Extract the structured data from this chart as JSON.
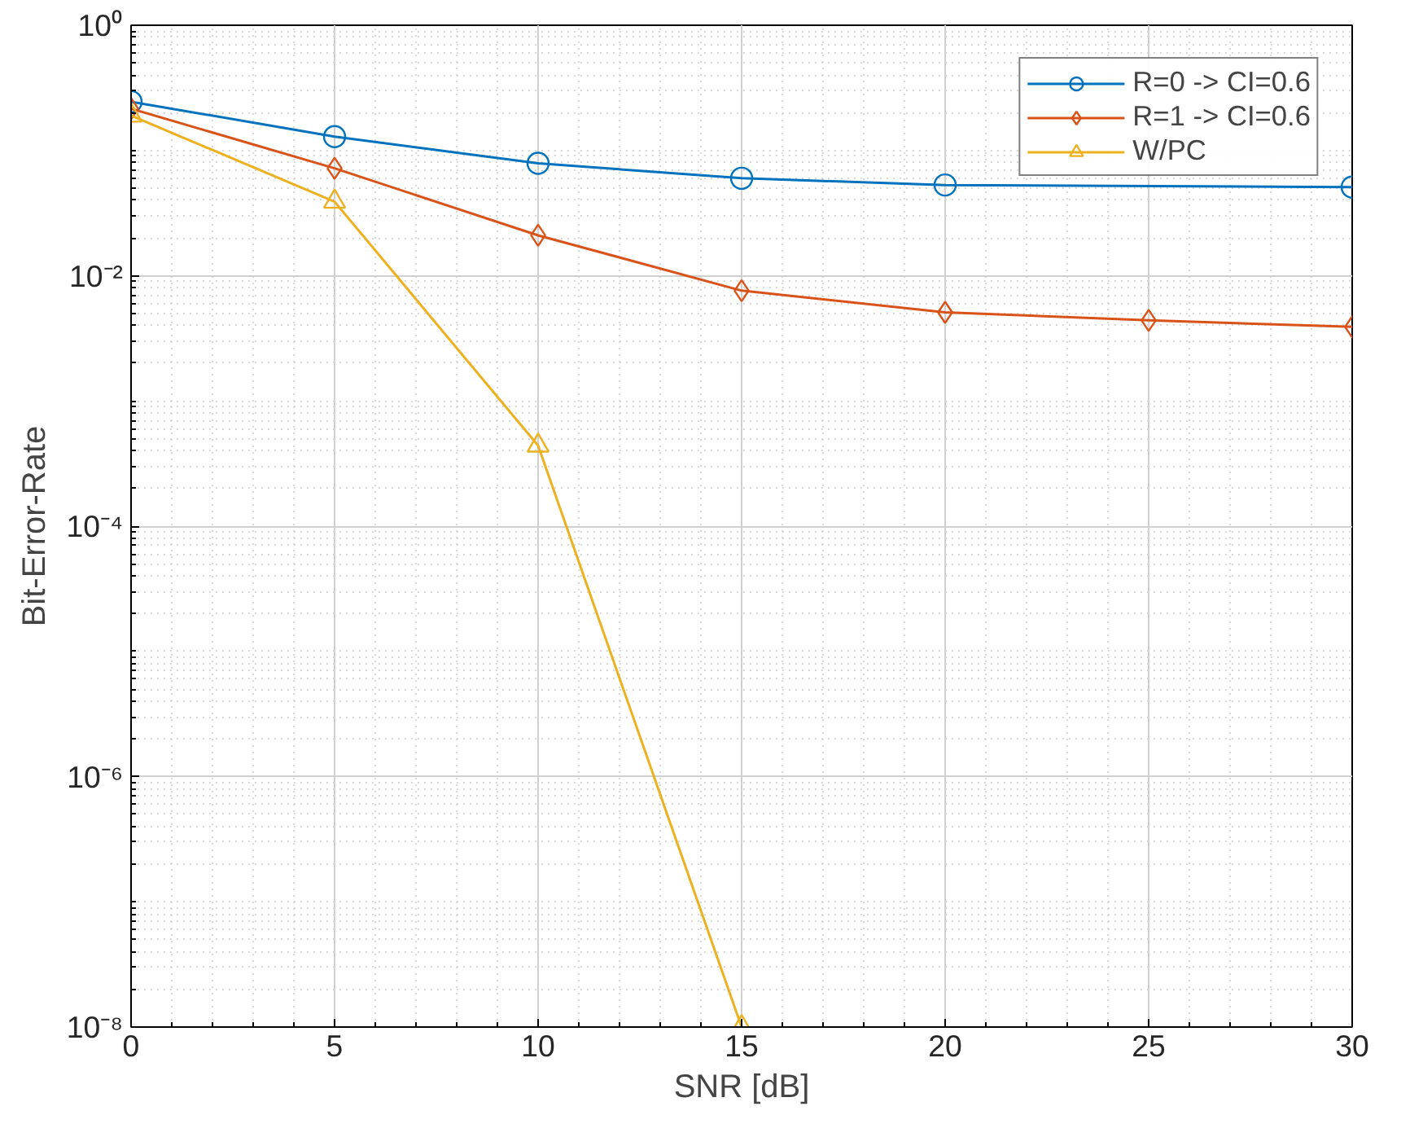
{
  "chart_data": {
    "type": "line",
    "xlabel": "SNR [dB]",
    "ylabel": "Bit-Error-Rate",
    "log": "y",
    "grid": true,
    "legend": "top right",
    "line_style": "solid",
    "xlim": [
      0,
      30
    ],
    "xticks": [
      0,
      5,
      10,
      15,
      20,
      25,
      30
    ],
    "ylim": [
      1e-08,
      1
    ],
    "yticks": [
      {
        "value": 1e-08,
        "label": "10⁻⁸"
      },
      {
        "value": 1e-06,
        "label": "10⁻⁶"
      },
      {
        "value": 0.0001,
        "label": "10⁻⁴"
      },
      {
        "value": 0.01,
        "label": "10⁻²"
      },
      {
        "value": 1,
        "label": "10⁰"
      }
    ],
    "series": [
      {
        "name": "R=0 -> CI=0.6",
        "color": "#0072bd",
        "marker": "circle",
        "x": [
          0,
          5,
          10,
          15,
          20,
          30
        ],
        "values": [
          0.245,
          0.129,
          0.079,
          0.06,
          0.053,
          0.051
        ]
      },
      {
        "name": "R=1 -> CI=0.6",
        "color": "#d95319",
        "marker": "diamond",
        "x": [
          0,
          5,
          10,
          15,
          20,
          25,
          30
        ],
        "values": [
          0.216,
          0.072,
          0.021,
          0.0076,
          0.0051,
          0.0044,
          0.0039
        ]
      },
      {
        "name": "W/PC",
        "color": "#edb120",
        "marker": "triangle",
        "x": [
          0,
          5,
          10,
          15
        ],
        "values": [
          0.19,
          0.039,
          0.00044,
          1e-08
        ]
      }
    ]
  }
}
